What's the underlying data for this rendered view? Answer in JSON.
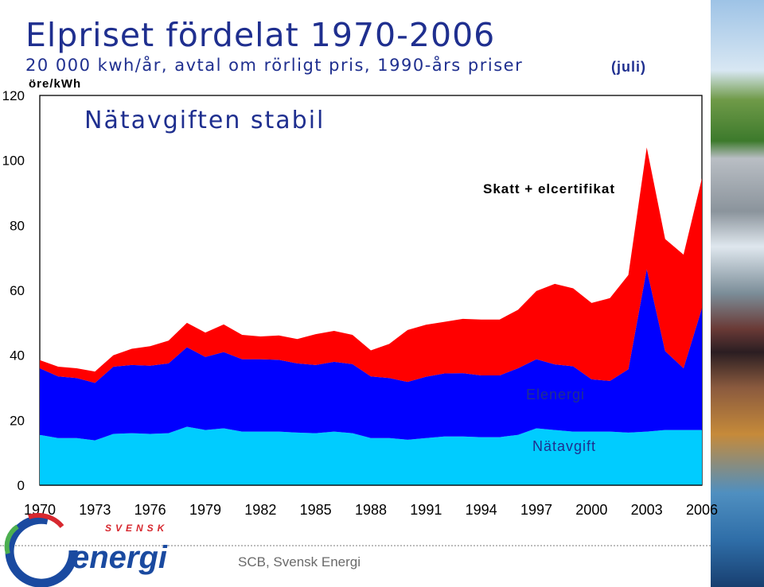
{
  "header": {
    "title": "Elpriset fördelat 1970-2006",
    "subtitle": "20 000 kwh/år, avtal om rörligt pris, 1990-års priser",
    "period_note": "(juli)",
    "unit_label": "öre/kWh",
    "callout": "Nätavgiften stabil"
  },
  "footer": {
    "source": "SCB, Svensk Energi",
    "logo_top": "SVENSK",
    "logo_main": "energi"
  },
  "colors": {
    "natavgift": "#00ccff",
    "elenergi": "#0000ff",
    "skatt": "#ff0000",
    "title": "#1f2f8f",
    "logo_blue": "#1a4aa0",
    "logo_red": "#d7282f",
    "logo_green": "#4caf50"
  },
  "chart_data": {
    "type": "area",
    "stacked": true,
    "ylim": [
      0,
      120
    ],
    "y_ticks": [
      "0",
      "20",
      "40",
      "60",
      "80",
      "100",
      "120"
    ],
    "x_ticks": [
      "1970",
      "1973",
      "1976",
      "1979",
      "1982",
      "1985",
      "1988",
      "1991",
      "1994",
      "1997",
      "2000",
      "2003",
      "2006"
    ],
    "x": [
      1970,
      1971,
      1972,
      1973,
      1974,
      1975,
      1976,
      1977,
      1978,
      1979,
      1980,
      1981,
      1982,
      1983,
      1984,
      1985,
      1986,
      1987,
      1988,
      1989,
      1990,
      1991,
      1992,
      1993,
      1994,
      1995,
      1996,
      1997,
      1998,
      1999,
      2000,
      2001,
      2002,
      2003,
      2004,
      2005,
      2006
    ],
    "series": [
      {
        "name": "Nätavgift",
        "values": [
          15.5,
          14.5,
          14.5,
          13.8,
          15.8,
          16,
          15.8,
          16,
          18,
          17,
          17.5,
          16.5,
          16.5,
          16.5,
          16.2,
          16,
          16.5,
          16,
          14.5,
          14.5,
          14,
          14.5,
          15,
          15,
          14.8,
          14.8,
          15.5,
          17.5,
          17,
          16.5,
          16.5,
          16.5,
          16.2,
          16.5,
          17,
          17,
          17
        ]
      },
      {
        "name": "Elenergi",
        "values": [
          20.5,
          19,
          18.5,
          17.7,
          20.7,
          21,
          21,
          21.5,
          24.5,
          22.5,
          23.5,
          22.3,
          22.3,
          22.1,
          21.3,
          21,
          21.5,
          21.3,
          19,
          18.5,
          17.8,
          18.9,
          19.4,
          19.5,
          19,
          19,
          20.5,
          21.3,
          20.2,
          20.1,
          16.1,
          15.6,
          19.5,
          50,
          24.3,
          19,
          37.5
        ]
      },
      {
        "name": "Skatt + elcertifikat",
        "values": [
          2.5,
          3,
          3,
          3.5,
          3.5,
          5,
          6,
          7,
          7.5,
          7.5,
          8.5,
          7.5,
          7,
          7.5,
          7.5,
          9.5,
          9.5,
          9,
          8,
          10.5,
          16,
          16,
          15.9,
          16.7,
          17.2,
          17.2,
          18,
          21,
          24.8,
          24,
          23.5,
          25.5,
          29,
          37.5,
          34.5,
          35,
          40
        ]
      }
    ]
  }
}
